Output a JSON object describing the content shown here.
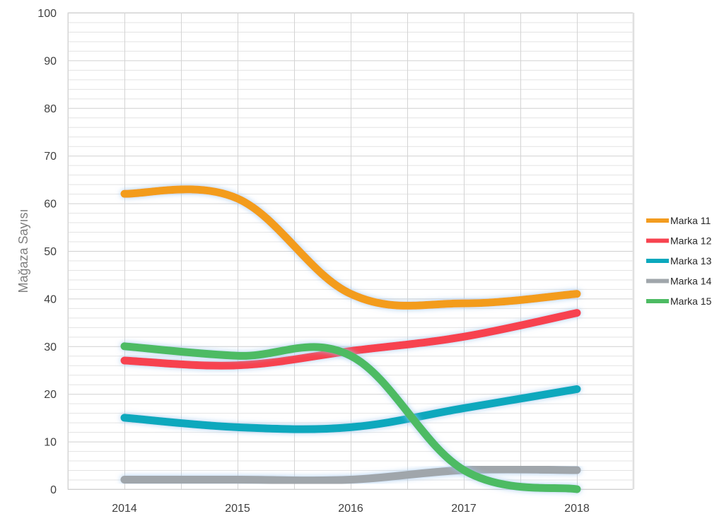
{
  "chart_data": {
    "type": "line",
    "title": "",
    "xlabel": "",
    "ylabel": "Mağaza Sayısı",
    "ylim": [
      0,
      100
    ],
    "y_ticks": [
      "0",
      "10",
      "20",
      "30",
      "40",
      "50",
      "60",
      "70",
      "80",
      "90",
      "100"
    ],
    "categories": [
      "2014",
      "2015",
      "2016",
      "2017",
      "2018"
    ],
    "grid": true,
    "legend_position": "right",
    "smooth": true,
    "series": [
      {
        "name": "Marka 11",
        "color": "#f39c1f",
        "values": [
          62,
          61,
          41,
          39,
          41
        ]
      },
      {
        "name": "Marka 12",
        "color": "#f7434f",
        "values": [
          27,
          26,
          29,
          32,
          37
        ]
      },
      {
        "name": "Marka 13",
        "color": "#0aa8bd",
        "values": [
          15,
          13,
          13,
          17,
          21
        ]
      },
      {
        "name": "Marka 14",
        "color": "#a0a6ab",
        "values": [
          2,
          2,
          2,
          4,
          4
        ]
      },
      {
        "name": "Marka 15",
        "color": "#4dbb63",
        "values": [
          30,
          28,
          28,
          4,
          0
        ]
      }
    ]
  }
}
